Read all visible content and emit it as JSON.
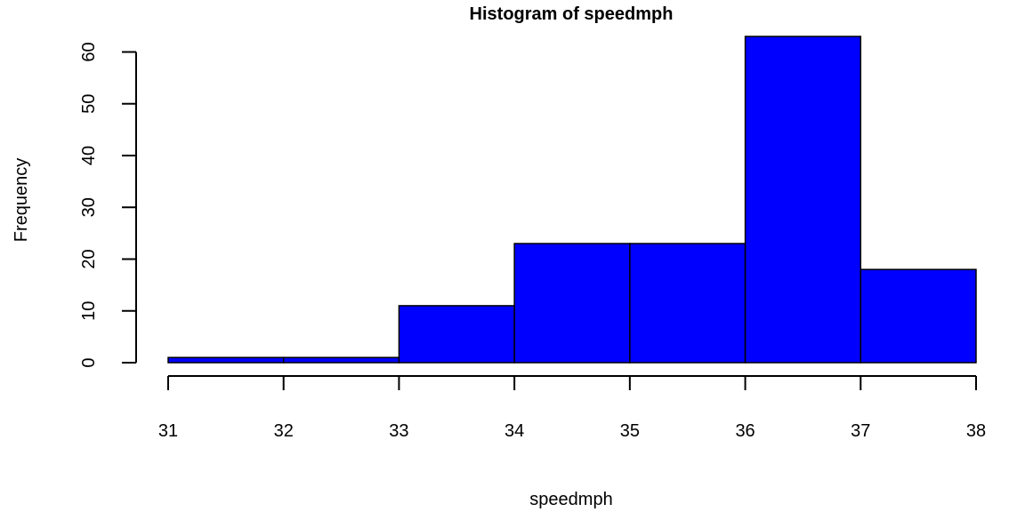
{
  "chart_data": {
    "type": "bar",
    "title": "Histogram of speedmph",
    "xlabel": "speedmph",
    "ylabel": "Frequency",
    "bins": [
      {
        "start": 31,
        "end": 32,
        "count": 1
      },
      {
        "start": 32,
        "end": 33,
        "count": 1
      },
      {
        "start": 33,
        "end": 34,
        "count": 11
      },
      {
        "start": 34,
        "end": 35,
        "count": 23
      },
      {
        "start": 35,
        "end": 36,
        "count": 23
      },
      {
        "start": 36,
        "end": 37,
        "count": 63
      },
      {
        "start": 37,
        "end": 38,
        "count": 18
      }
    ],
    "x_ticks": [
      31,
      32,
      33,
      34,
      35,
      36,
      37,
      38
    ],
    "y_ticks": [
      0,
      10,
      20,
      30,
      40,
      50,
      60
    ],
    "xlim": [
      31,
      38
    ],
    "ylim": [
      0,
      63
    ],
    "bar_color": "#0000ff",
    "grid": false
  }
}
